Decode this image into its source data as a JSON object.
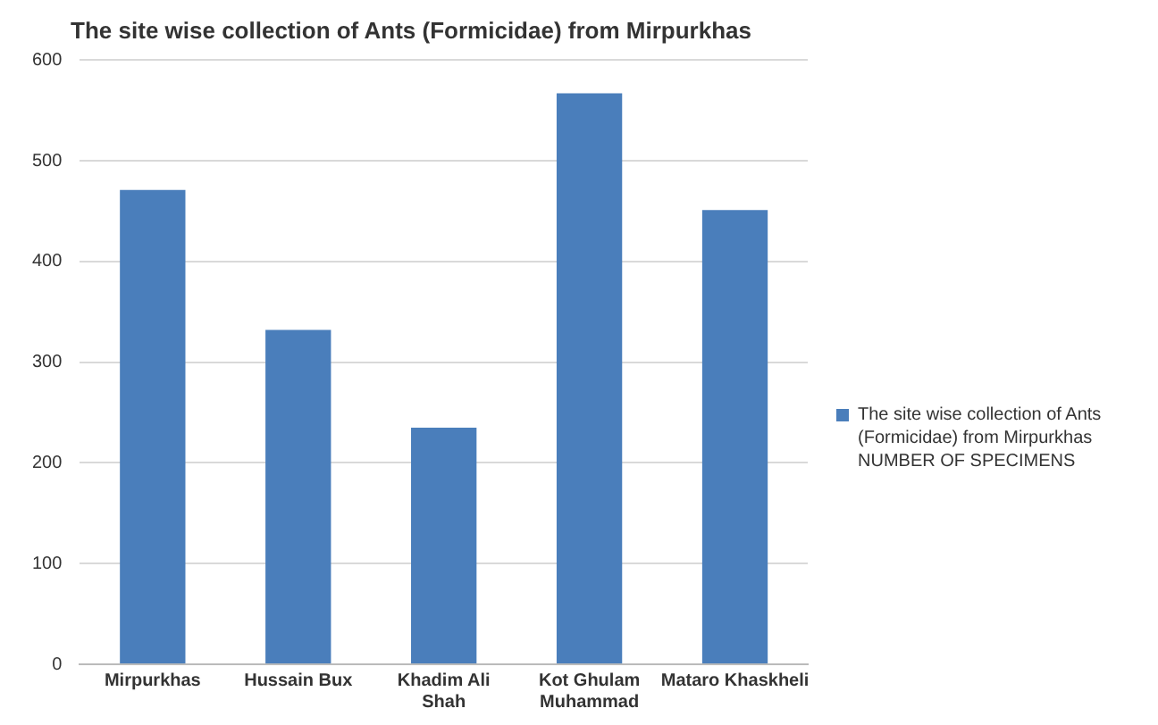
{
  "chart_data": {
    "type": "bar",
    "title": "The site wise collection of Ants (Formicidae) from Mirpurkhas",
    "categories": [
      "Mirpurkhas",
      "Hussain Bux",
      "Khadim Ali Shah",
      "Kot Ghulam Muhammad",
      "Mataro Khaskheli"
    ],
    "series": [
      {
        "name": "The site wise collection of Ants (Formicidae) from Mirpurkhas NUMBER OF SPECIMENS",
        "color": "#4a7ebb",
        "values": [
          471,
          332,
          235,
          567,
          451
        ]
      }
    ],
    "ylim": [
      0,
      600
    ],
    "yticks": [
      0,
      100,
      200,
      300,
      400,
      500,
      600
    ],
    "grid": "y",
    "legend": "right"
  }
}
